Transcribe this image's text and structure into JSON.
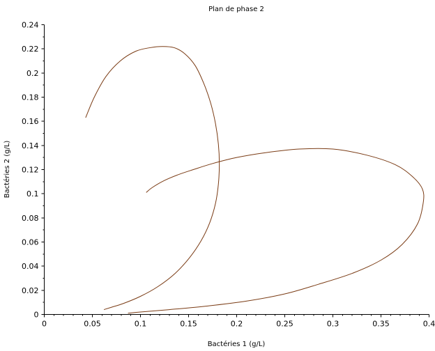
{
  "chart_data": {
    "type": "line",
    "title": "Plan de phase 2",
    "xlabel": "Bactéries 1 (g/L)",
    "ylabel": "Bactéries 2 (g/L)",
    "xlim": [
      0,
      0.4
    ],
    "ylim": [
      0,
      0.24
    ],
    "xticks": [
      0,
      0.05,
      0.1,
      0.15,
      0.2,
      0.25,
      0.3,
      0.35,
      0.4
    ],
    "xtick_labels": [
      "0",
      "0.05",
      "0.1",
      "0.15",
      "0.2",
      "0.25",
      "0.3",
      "0.35",
      "0.4"
    ],
    "yticks": [
      0,
      0.02,
      0.04,
      0.06,
      0.08,
      0.1,
      0.12,
      0.14,
      0.16,
      0.18,
      0.2,
      0.22,
      0.24
    ],
    "ytick_labels": [
      "0",
      "0.02",
      "0.04",
      "0.06",
      "0.08",
      "0.1",
      "0.12",
      "0.14",
      "0.16",
      "0.18",
      "0.2",
      "0.22",
      "0.24"
    ],
    "grid": false,
    "legend": "none",
    "line_color": "#7a3b14",
    "series": [
      {
        "x": [
          0.043,
          0.052,
          0.064,
          0.079,
          0.095,
          0.11,
          0.123,
          0.135,
          0.146,
          0.157,
          0.166,
          0.173,
          0.178,
          0.181,
          0.182,
          0.181,
          0.178,
          0.172,
          0.163,
          0.151,
          0.136,
          0.118,
          0.1,
          0.082,
          0.07,
          0.062
        ],
        "y": [
          0.163,
          0.18,
          0.197,
          0.21,
          0.218,
          0.221,
          0.222,
          0.221,
          0.216,
          0.206,
          0.191,
          0.175,
          0.158,
          0.141,
          0.125,
          0.108,
          0.092,
          0.076,
          0.061,
          0.047,
          0.034,
          0.023,
          0.015,
          0.009,
          0.006,
          0.004
        ]
      },
      {
        "x": [
          0.087,
          0.1,
          0.13,
          0.17,
          0.21,
          0.25,
          0.285,
          0.32,
          0.35,
          0.372,
          0.388,
          0.394,
          0.393,
          0.383,
          0.365,
          0.335,
          0.3,
          0.265,
          0.23,
          0.2,
          0.175,
          0.155,
          0.14,
          0.125,
          0.112,
          0.106
        ],
        "y": [
          0.001,
          0.002,
          0.004,
          0.007,
          0.011,
          0.017,
          0.025,
          0.034,
          0.045,
          0.058,
          0.075,
          0.093,
          0.104,
          0.114,
          0.124,
          0.132,
          0.137,
          0.137,
          0.134,
          0.13,
          0.125,
          0.12,
          0.116,
          0.111,
          0.105,
          0.101
        ]
      }
    ]
  }
}
